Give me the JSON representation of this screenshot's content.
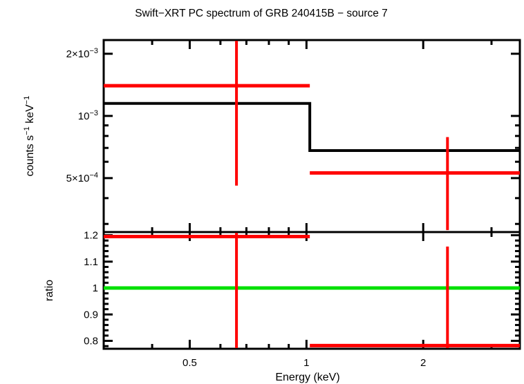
{
  "title": "Swift−XRT PC spectrum of GRB 240415B − source 7",
  "colors": {
    "frame": "#000000",
    "model": "#000000",
    "data": "#ff0000",
    "unity_line": "#00e000",
    "background": "#ffffff"
  },
  "chart_data": [
    {
      "type": "line",
      "panel": "spectrum",
      "title": "Swift−XRT PC spectrum of GRB 240415B − source 7",
      "xscale": "log",
      "yscale": "log",
      "xlim": [
        0.3,
        3.55
      ],
      "ylim": [
        0.000274,
        0.00233
      ],
      "xlabel": "",
      "ylabel_parts": [
        {
          "text": "counts s"
        },
        {
          "sup": "−1"
        },
        {
          "text": " keV"
        },
        {
          "sup": "−1"
        }
      ],
      "xticks": {
        "major": [
          0.5,
          1,
          2
        ],
        "minor": [
          0.4,
          0.6,
          0.7,
          0.8,
          0.9,
          3
        ],
        "labels": [
          "0.5",
          "1",
          "2"
        ]
      },
      "yticks": {
        "major": [
          0.002,
          0.001,
          0.0005
        ],
        "minor": [
          0.0009,
          0.0008,
          0.0007,
          0.0006,
          0.0004,
          0.0003
        ],
        "labels": [
          {
            "value": 0.002,
            "base": "2×10",
            "sup": "−3"
          },
          {
            "value": 0.001,
            "base": "10",
            "sup": "−3"
          },
          {
            "value": 0.0005,
            "base": "5×10",
            "sup": "−4"
          }
        ]
      },
      "model": {
        "color": "#000000",
        "steps": [
          {
            "e_lo": 0.3,
            "e_hi": 1.02,
            "rate": 0.00115
          },
          {
            "e_lo": 1.02,
            "e_hi": 3.55,
            "rate": 0.00068
          }
        ]
      },
      "points": {
        "color": "#ff0000",
        "data": [
          {
            "e": 0.66,
            "e_lo": 0.3,
            "e_hi": 1.02,
            "rate": 0.0014,
            "rate_lo": 0.00046,
            "rate_hi": 0.00233,
            "hi_clipped": true
          },
          {
            "e": 2.31,
            "e_lo": 1.02,
            "e_hi": 3.55,
            "rate": 0.00053,
            "rate_lo": 0.00028,
            "rate_hi": 0.00079,
            "lo_clipped": true
          }
        ]
      }
    },
    {
      "type": "ratio",
      "panel": "ratio",
      "xscale": "log",
      "yscale": "linear",
      "xlim": [
        0.3,
        3.55
      ],
      "ylim": [
        0.77,
        1.212
      ],
      "xlabel": "Energy (keV)",
      "ylabel": "ratio",
      "xticks": {
        "major": [
          0.5,
          1,
          2
        ],
        "minor": [
          0.4,
          0.6,
          0.7,
          0.8,
          0.9,
          3
        ],
        "labels": [
          "0.5",
          "1",
          "2"
        ]
      },
      "yticks": {
        "major": [
          0.8,
          0.9,
          1,
          1.1,
          1.2
        ],
        "labels": [
          "0.8",
          "0.9",
          "1",
          "1.1",
          "1.2"
        ],
        "minor_step": 0.02
      },
      "unity_line": {
        "value": 1,
        "color": "#00e000"
      },
      "points": {
        "color": "#ff0000",
        "data": [
          {
            "e": 0.66,
            "e_lo": 0.3,
            "e_hi": 1.02,
            "ratio": 1.195,
            "ratio_lo": 0.77,
            "ratio_hi": 1.212,
            "lo_clipped": true,
            "hi_clipped": true
          },
          {
            "e": 2.31,
            "e_lo": 1.02,
            "e_hi": 3.55,
            "ratio": 0.782,
            "ratio_lo": 0.77,
            "ratio_hi": 1.157,
            "lo_clipped": true
          }
        ]
      }
    }
  ]
}
